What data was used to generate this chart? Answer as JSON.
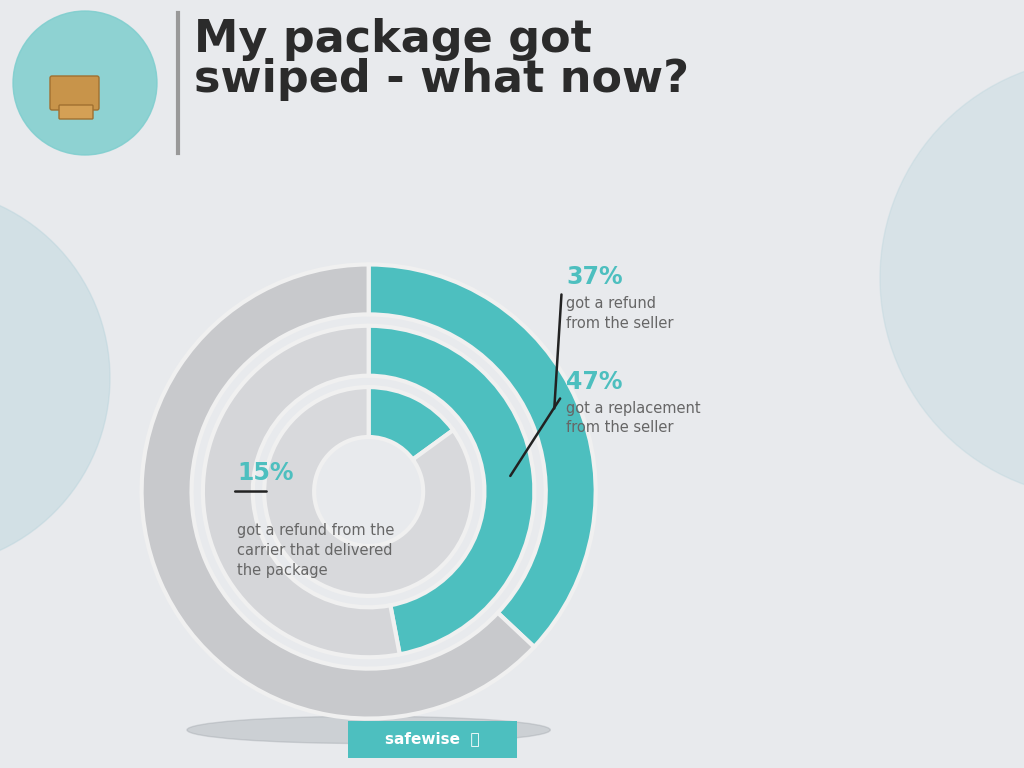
{
  "title_line1": "My package got",
  "title_line2": "swiped - what now?",
  "title_color": "#2b2b2b",
  "title_fontsize": 32,
  "background_color": "#e8eaed",
  "teal_color": "#4dbfbf",
  "gray_color": "#c8c9cc",
  "gray_color2": "#d5d6d9",
  "white_separator": "#f0f0f0",
  "rings": [
    {
      "outer": 1.0,
      "inner": 0.78,
      "pct": 37,
      "label_pct": "37%",
      "label_desc": "got a refund\nfrom the seller",
      "side": "right_top"
    },
    {
      "outer": 0.73,
      "inner": 0.51,
      "pct": 47,
      "label_pct": "47%",
      "label_desc": "got a replacement\nfrom the seller",
      "side": "right_mid"
    },
    {
      "outer": 0.46,
      "inner": 0.24,
      "pct": 15,
      "label_pct": "15%",
      "label_desc": "got a refund from the\ncarrier that delivered\nthe package",
      "side": "left"
    }
  ],
  "start_angle": 90,
  "annotation_color": "#4dbfbf",
  "annotation_desc_color": "#666666",
  "line_color": "#222222",
  "safewise_bg": "#4dbfbf",
  "safewise_text": "#ffffff",
  "deco_circle_color": "#b8d4dc",
  "pkg_circle_color": "#7ecece"
}
